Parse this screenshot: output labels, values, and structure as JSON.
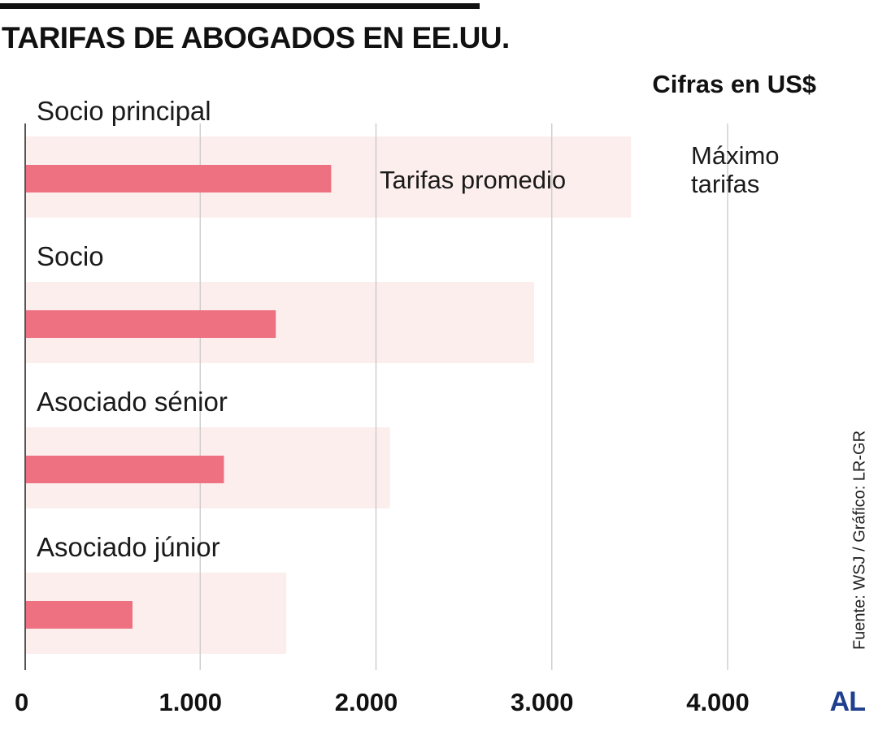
{
  "header": {
    "title": "TARIFAS DE ABOGADOS EN EE.UU.",
    "units": "Cifras en US$"
  },
  "footer": {
    "source": "Fuente: WSJ / Gráfico: LR-GR",
    "logo": "AL"
  },
  "chart_data": {
    "type": "bar",
    "orientation": "horizontal",
    "title": "TARIFAS DE ABOGADOS EN EE.UU.",
    "xlabel": "",
    "ylabel": "",
    "categories": [
      "Socio principal",
      "Socio",
      "Asociado sénior",
      "Asociado júnior"
    ],
    "series": [
      {
        "name": "Máximo tarifas",
        "label_lines": [
          "Máximo",
          "tarifas"
        ],
        "values": [
          3450,
          2900,
          2080,
          1490
        ],
        "color": "#fdeeee"
      },
      {
        "name": "Tarifas promedio",
        "values": [
          1745,
          1430,
          1135,
          615
        ],
        "color": "#ee7182"
      }
    ],
    "xlim": [
      0,
      4000
    ],
    "ticks": [
      {
        "value": 0,
        "label": "0"
      },
      {
        "value": 1000,
        "label": "1.000"
      },
      {
        "value": 2000,
        "label": "2.000"
      },
      {
        "value": 3000,
        "label": "3.000"
      },
      {
        "value": 4000,
        "label": "4.000"
      }
    ],
    "grid": true,
    "gridline_color": "#c8c8c8",
    "axis_color": "#555555"
  }
}
